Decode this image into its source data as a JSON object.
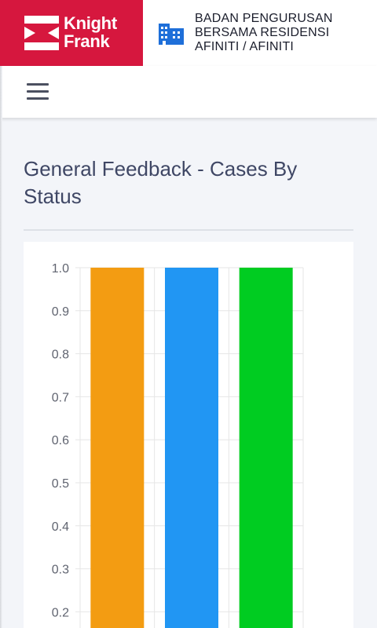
{
  "brand": {
    "line1": "Knight",
    "line2": "Frank",
    "color": "#d6173e"
  },
  "organization": {
    "icon": "building-icon",
    "line1": "BADAN PENGURUSAN",
    "line2": "BERSAMA RESIDENSI",
    "line3": "AFINITI / AFINITI"
  },
  "nav": {
    "menu_icon": "hamburger-menu-icon"
  },
  "page": {
    "title": "General Feedback - Cases By Status"
  },
  "chart_data": {
    "type": "bar",
    "title": "",
    "xlabel": "",
    "ylabel": "",
    "categories": [
      "",
      "",
      ""
    ],
    "values": [
      1,
      1,
      1
    ],
    "colors": [
      "#f39c12",
      "#2196f3",
      "#00cc21"
    ],
    "ylim": [
      0,
      1.0
    ],
    "visible_yticks": [
      "1.0",
      "0.9",
      "0.8",
      "0.7",
      "0.6",
      "0.5",
      "0.4",
      "0.3",
      "0.2"
    ],
    "grid": true
  }
}
